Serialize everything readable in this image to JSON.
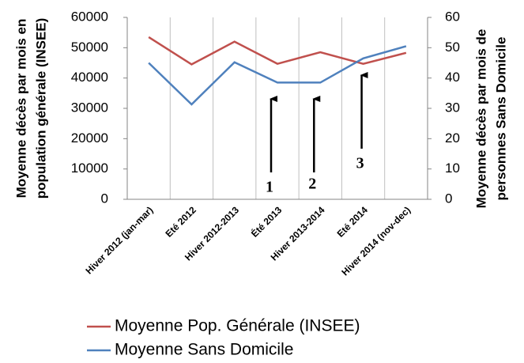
{
  "chart_data": {
    "type": "line",
    "categories": [
      "Hiver 2012 (jan-mar)",
      "Eté 2012",
      "Hiver 2012-2013",
      "Été 2013",
      "Hiver 2013-2014",
      "Eté 2014",
      "Hiver 2014 (nov-dec)"
    ],
    "series": [
      {
        "name": "Moyenne Pop. Générale (INSEE)",
        "color": "#c0504d",
        "values": [
          53500,
          44500,
          52000,
          44700,
          48500,
          44700,
          48300
        ]
      },
      {
        "name": "Moyenne Sans Domicile",
        "color": "#4f81bd",
        "axis": "y2",
        "values": [
          45,
          31.3,
          45.2,
          38.5,
          38.5,
          46.5,
          50.5
        ]
      }
    ],
    "ylabel": [
      "Moyenne décès par mois en",
      "population générale (INSEE)"
    ],
    "y2label": [
      "Moyenne décès par mois de",
      "personnes Sans Domicile"
    ],
    "ylim": [
      0,
      60000
    ],
    "yticks": [
      0,
      10000,
      20000,
      30000,
      40000,
      50000,
      60000
    ],
    "y2lim": [
      0,
      60
    ],
    "y2ticks": [
      0,
      10,
      20,
      30,
      40,
      50,
      60
    ],
    "annotations": [
      "1",
      "2",
      "3"
    ],
    "grid": true
  }
}
